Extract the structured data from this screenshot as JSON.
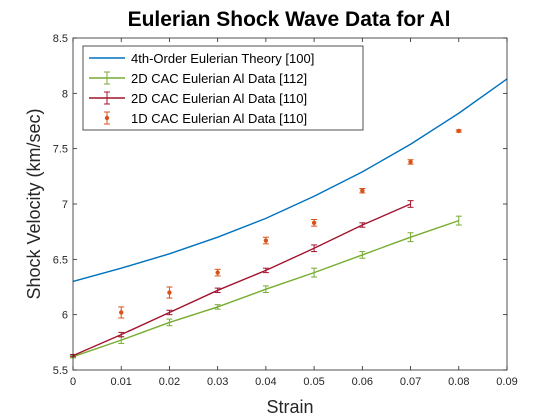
{
  "chart_data": {
    "type": "line",
    "title": "Eulerian Shock Wave Data for Al",
    "xlabel": "Strain",
    "ylabel": "Shock Velocity (km/sec)",
    "xlim": [
      0,
      0.09
    ],
    "ylim": [
      5.5,
      8.5
    ],
    "xticks": [
      0,
      0.01,
      0.02,
      0.03,
      0.04,
      0.05,
      0.06,
      0.07,
      0.08,
      0.09
    ],
    "xtick_labels": [
      "0",
      "0.01",
      "0.02",
      "0.03",
      "0.04",
      "0.05",
      "0.06",
      "0.07",
      "0.08",
      "0.09"
    ],
    "yticks": [
      5.5,
      6,
      6.5,
      7,
      7.5,
      8,
      8.5
    ],
    "ytick_labels": [
      "5.5",
      "6",
      "6.5",
      "7",
      "7.5",
      "8",
      "8.5"
    ],
    "grid": false,
    "box": true,
    "legend_position": "top-left",
    "series": [
      {
        "name": "4th-Order Eulerian Theory [100]",
        "kind": "line",
        "color": "#0072BD",
        "x": [
          0,
          0.01,
          0.02,
          0.03,
          0.04,
          0.05,
          0.06,
          0.07,
          0.08,
          0.09
        ],
        "y": [
          6.3,
          6.42,
          6.55,
          6.7,
          6.87,
          7.07,
          7.29,
          7.54,
          7.82,
          8.13
        ]
      },
      {
        "name": "2D CAC Eulerian Al Data [112]",
        "kind": "errorbar-line",
        "color": "#77AC30",
        "x": [
          0,
          0.01,
          0.02,
          0.03,
          0.04,
          0.05,
          0.06,
          0.07,
          0.08
        ],
        "y": [
          5.62,
          5.77,
          5.93,
          6.07,
          6.23,
          6.38,
          6.54,
          6.7,
          6.85
        ],
        "err": [
          0.01,
          0.03,
          0.03,
          0.02,
          0.03,
          0.04,
          0.03,
          0.04,
          0.04
        ]
      },
      {
        "name": "2D CAC Eulerian Al Data [110]",
        "kind": "errorbar-line",
        "color": "#A2142F",
        "x": [
          0,
          0.01,
          0.02,
          0.03,
          0.04,
          0.05,
          0.06,
          0.07
        ],
        "y": [
          5.63,
          5.82,
          6.02,
          6.22,
          6.4,
          6.6,
          6.81,
          7.0
        ],
        "err": [
          0.01,
          0.02,
          0.02,
          0.02,
          0.02,
          0.03,
          0.02,
          0.03
        ]
      },
      {
        "name": "1D CAC Eulerian Al Data [110]",
        "kind": "errorbar-scatter",
        "color": "#D95319",
        "x": [
          0.01,
          0.02,
          0.03,
          0.04,
          0.05,
          0.06,
          0.07,
          0.08
        ],
        "y": [
          6.02,
          6.2,
          6.38,
          6.67,
          6.83,
          7.12,
          7.38,
          7.66
        ],
        "err": [
          0.05,
          0.05,
          0.03,
          0.03,
          0.03,
          0.02,
          0.02,
          0.01
        ]
      }
    ]
  }
}
